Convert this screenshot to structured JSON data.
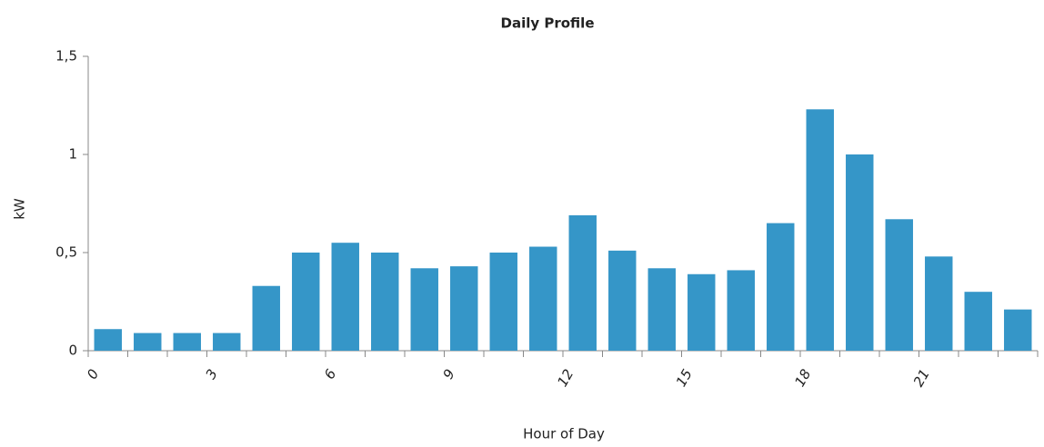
{
  "chart_data": {
    "type": "bar",
    "title": "Daily Profile",
    "x_label": "Hour of Day",
    "y_label": "kW",
    "categories": [
      "0",
      null,
      null,
      "3",
      null,
      null,
      "6",
      null,
      null,
      "9",
      null,
      null,
      "12",
      null,
      null,
      "15",
      null,
      null,
      "18",
      null,
      null,
      "21",
      null,
      null
    ],
    "values": [
      0.11,
      0.09,
      0.09,
      0.09,
      0.33,
      0.5,
      0.55,
      0.5,
      0.42,
      0.43,
      0.5,
      0.53,
      0.69,
      0.51,
      0.42,
      0.39,
      0.41,
      0.65,
      1.23,
      1.0,
      0.67,
      0.48,
      0.3,
      0.21
    ],
    "color": "#3596c8",
    "ylim": [
      0,
      1.5
    ],
    "yticks": [
      0,
      {
        "value": 0.5,
        "label": "0,5"
      },
      1,
      {
        "value": 1.5,
        "label": "1,5"
      }
    ],
    "grid": false
  }
}
